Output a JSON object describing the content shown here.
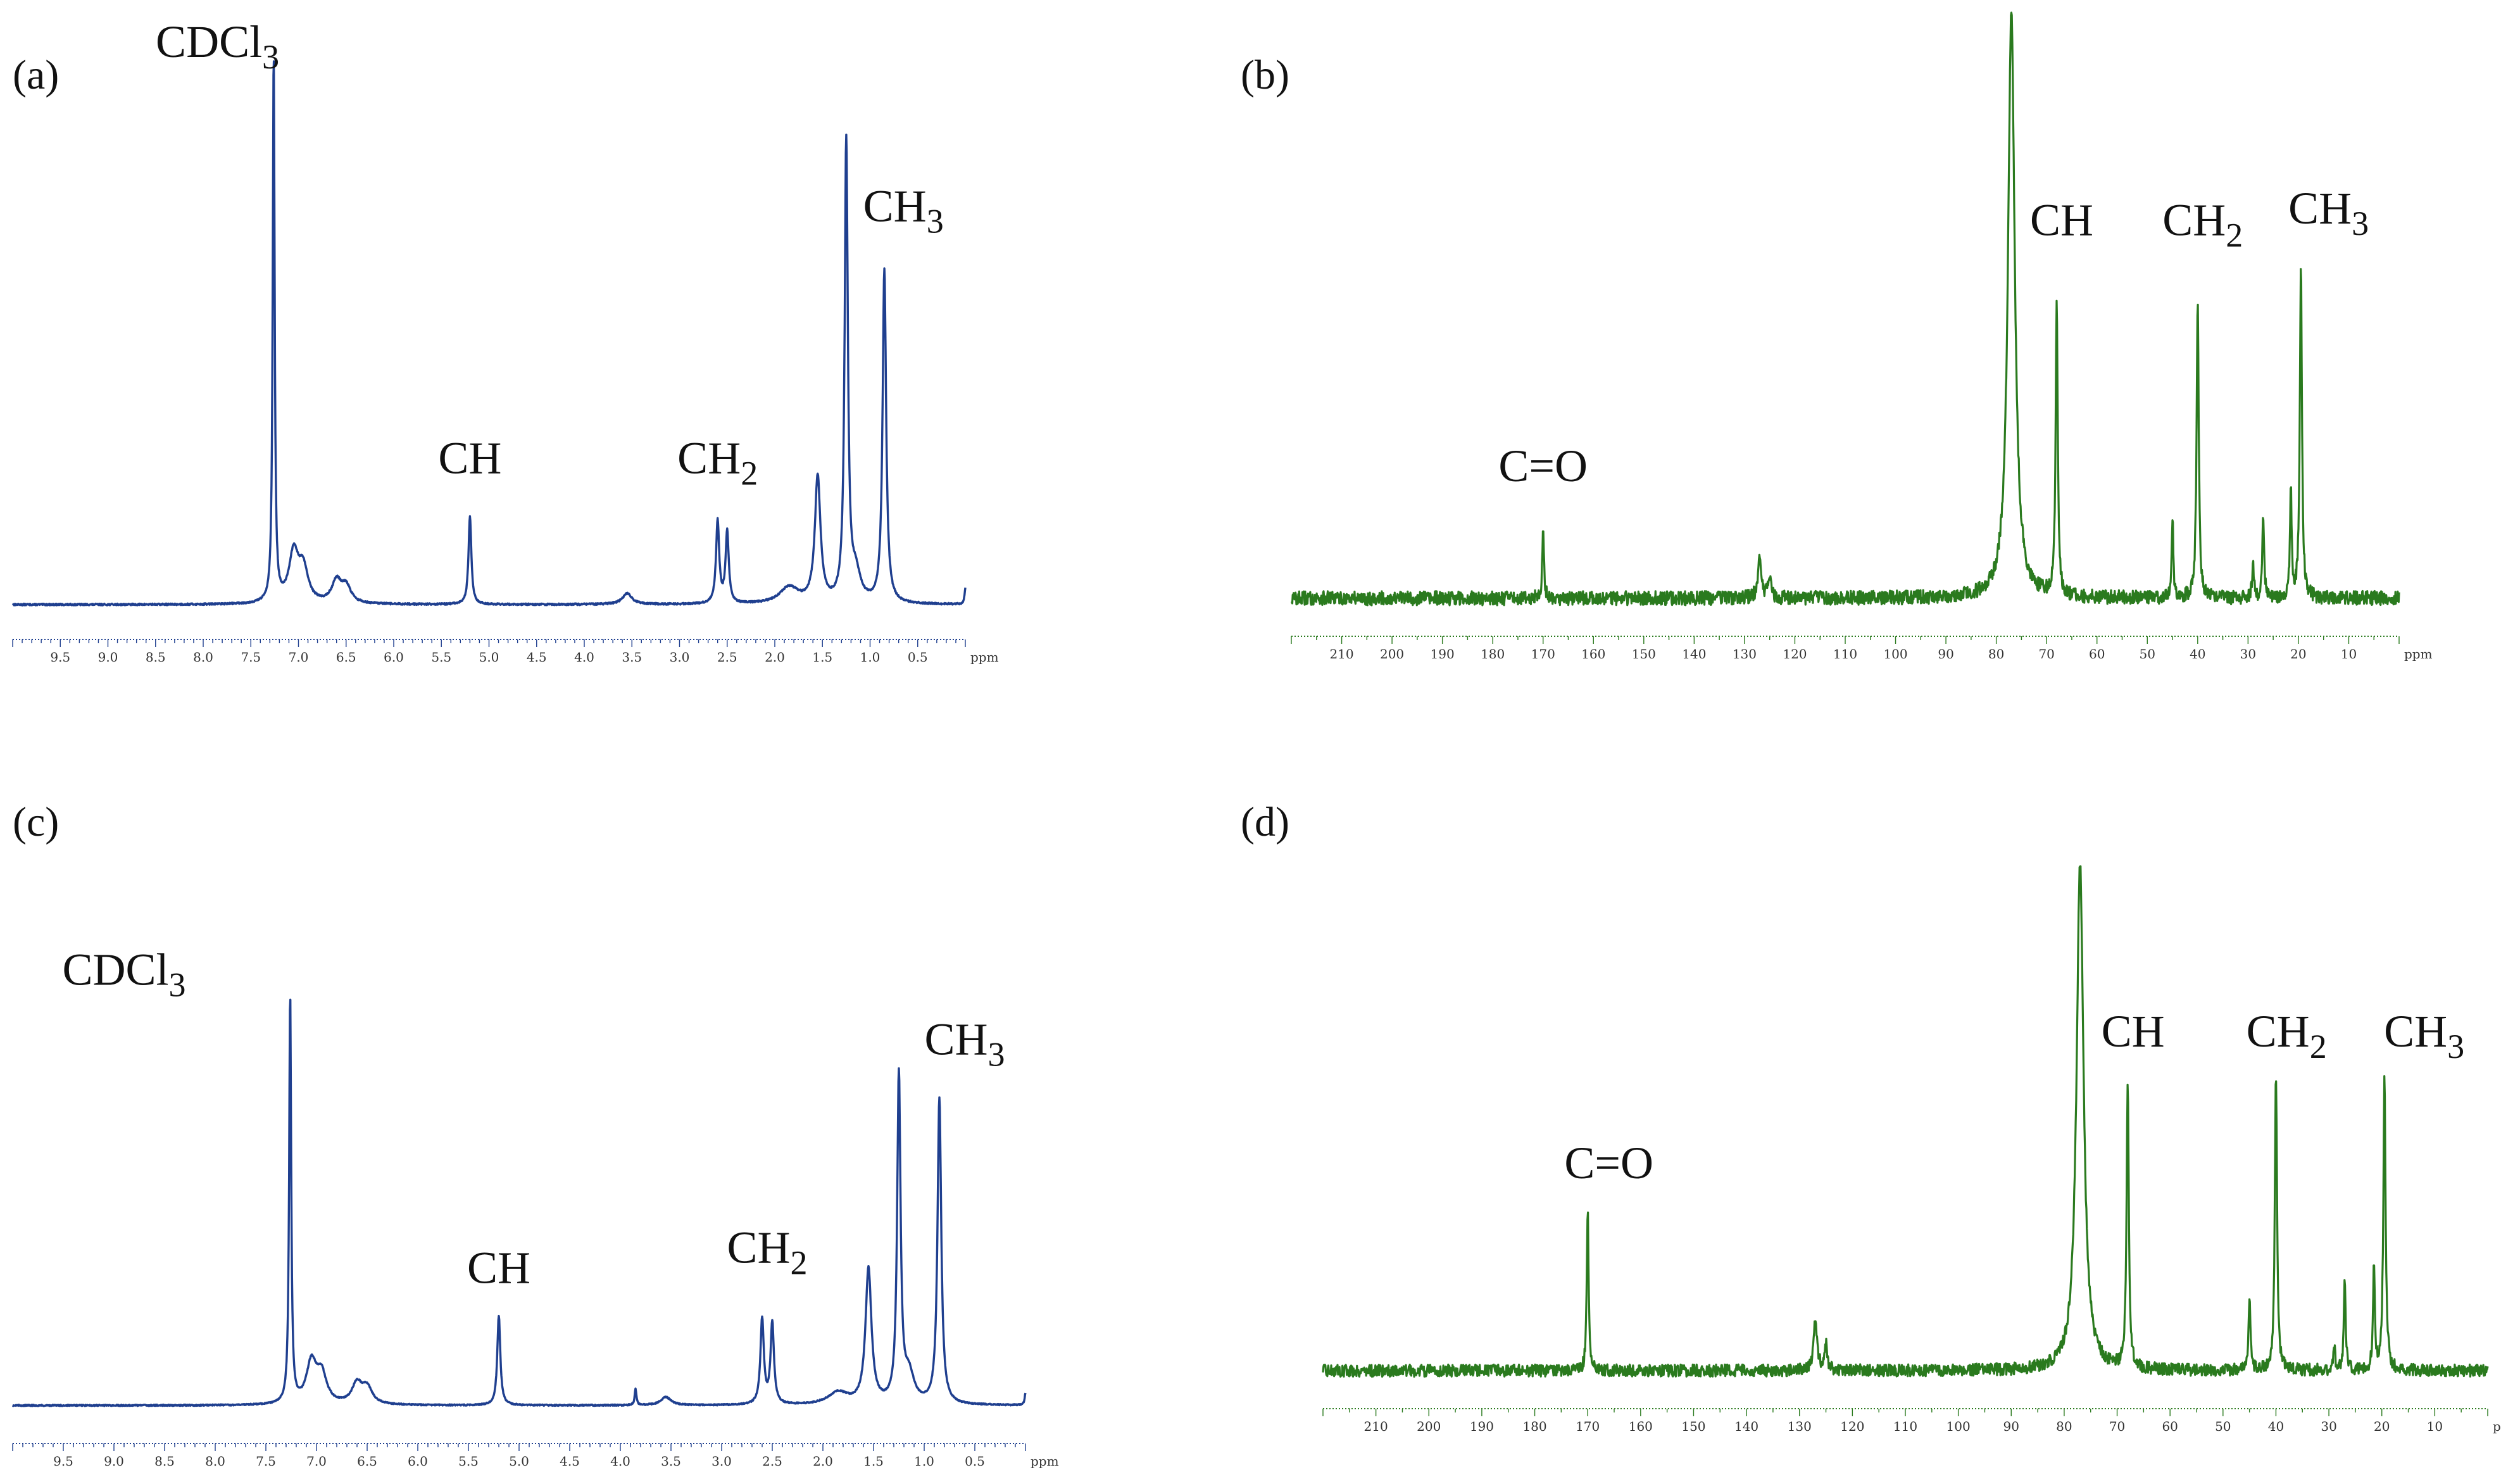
{
  "figure": {
    "colors": {
      "h1": "#1f3f8f",
      "c13": "#2a7a1e",
      "text": "#111111"
    }
  },
  "chart_data": [
    {
      "id": "a",
      "panel_label": "(a)",
      "type": "line",
      "nucleus": "1H",
      "color": "#1f3f8f",
      "x_range_ppm": [
        10.0,
        0.0
      ],
      "y_range": [
        0,
        1.0
      ],
      "axis_unit": "ppm",
      "ticks": [
        9.5,
        9.0,
        8.5,
        8.0,
        7.5,
        7.0,
        6.5,
        6.0,
        5.5,
        5.0,
        4.5,
        4.0,
        3.5,
        3.0,
        2.5,
        2.0,
        1.5,
        1.0,
        0.5
      ],
      "tick_labels": [
        "9.5",
        "9.0",
        "8.5",
        "8.0",
        "7.5",
        "7.0",
        "6.5",
        "6.0",
        "5.5",
        "5.0",
        "4.5",
        "4.0",
        "3.5",
        "3.0",
        "2.5",
        "2.0",
        "1.5",
        "1.0",
        "0.5"
      ],
      "peaks": [
        {
          "ppm": 7.26,
          "height": 1.0,
          "width": 0.012
        },
        {
          "ppm": 7.05,
          "height": 0.09,
          "width": 0.06
        },
        {
          "ppm": 6.95,
          "height": 0.06,
          "width": 0.06
        },
        {
          "ppm": 6.6,
          "height": 0.04,
          "width": 0.06
        },
        {
          "ppm": 6.5,
          "height": 0.03,
          "width": 0.06
        },
        {
          "ppm": 5.2,
          "height": 0.16,
          "width": 0.018
        },
        {
          "ppm": 3.55,
          "height": 0.02,
          "width": 0.06
        },
        {
          "ppm": 2.6,
          "height": 0.15,
          "width": 0.02
        },
        {
          "ppm": 2.5,
          "height": 0.13,
          "width": 0.02
        },
        {
          "ppm": 1.85,
          "height": 0.03,
          "width": 0.12
        },
        {
          "ppm": 1.55,
          "height": 0.23,
          "width": 0.035
        },
        {
          "ppm": 1.25,
          "height": 0.84,
          "width": 0.02
        },
        {
          "ppm": 1.15,
          "height": 0.05,
          "width": 0.06
        },
        {
          "ppm": 0.85,
          "height": 0.61,
          "width": 0.022
        },
        {
          "ppm": 0.0,
          "height": 0.03,
          "width": 0.01
        }
      ],
      "annotations": [
        {
          "label": "CDCl",
          "sub": "3",
          "ppm": 7.85,
          "y": 1.0
        },
        {
          "label": "CH",
          "sub": "3",
          "ppm": 0.65,
          "y": 0.7
        },
        {
          "label": "CH",
          "sub": "",
          "ppm": 5.2,
          "y": 0.24
        },
        {
          "label": "CH",
          "sub": "2",
          "ppm": 2.6,
          "y": 0.24
        }
      ]
    },
    {
      "id": "b",
      "panel_label": "(b)",
      "type": "line",
      "nucleus": "13C",
      "color": "#2a7a1e",
      "x_range_ppm": [
        220,
        0
      ],
      "y_range": [
        0,
        1.0
      ],
      "axis_unit": "ppm",
      "ticks": [
        210,
        200,
        190,
        180,
        170,
        160,
        150,
        140,
        130,
        120,
        110,
        100,
        90,
        80,
        70,
        60,
        50,
        40,
        30,
        20,
        10
      ],
      "tick_labels": [
        "210",
        "200",
        "190",
        "180",
        "170",
        "160",
        "150",
        "140",
        "130",
        "120",
        "110",
        "100",
        "90",
        "80",
        "70",
        "60",
        "50",
        "40",
        "30",
        "20",
        "10"
      ],
      "peaks": [
        {
          "ppm": 170,
          "height": 0.12,
          "width": 0.2
        },
        {
          "ppm": 127,
          "height": 0.07,
          "width": 0.4
        },
        {
          "ppm": 125,
          "height": 0.04,
          "width": 0.3
        },
        {
          "ppm": 77,
          "height": 1.0,
          "width": 0.8
        },
        {
          "ppm": 68,
          "height": 0.5,
          "width": 0.25
        },
        {
          "ppm": 45,
          "height": 0.14,
          "width": 0.2
        },
        {
          "ppm": 40,
          "height": 0.51,
          "width": 0.25
        },
        {
          "ppm": 29,
          "height": 0.06,
          "width": 0.2
        },
        {
          "ppm": 27,
          "height": 0.15,
          "width": 0.2
        },
        {
          "ppm": 21.5,
          "height": 0.19,
          "width": 0.2
        },
        {
          "ppm": 19.5,
          "height": 0.57,
          "width": 0.25
        }
      ],
      "annotations": [
        {
          "label": "C=O",
          "sub": "",
          "ppm": 170,
          "y": 0.2
        },
        {
          "label": "CH",
          "sub": "",
          "ppm": 67,
          "y": 0.62
        },
        {
          "label": "CH",
          "sub": "2",
          "ppm": 39,
          "y": 0.62
        },
        {
          "label": "CH",
          "sub": "3",
          "ppm": 14,
          "y": 0.64
        }
      ]
    },
    {
      "id": "c",
      "panel_label": "(c)",
      "type": "line",
      "nucleus": "1H",
      "color": "#1f3f8f",
      "x_range_ppm": [
        10.0,
        0.0
      ],
      "y_range": [
        0,
        1.0
      ],
      "axis_unit": "ppm",
      "ticks": [
        9.5,
        9.0,
        8.5,
        8.0,
        7.5,
        7.0,
        6.5,
        6.0,
        5.5,
        5.0,
        4.5,
        4.0,
        3.5,
        3.0,
        2.5,
        2.0,
        1.5,
        1.0,
        0.5
      ],
      "tick_labels": [
        "9.5",
        "9.0",
        "8.5",
        "8.0",
        "7.5",
        "7.0",
        "6.5",
        "6.0",
        "5.5",
        "5.0",
        "4.5",
        "4.0",
        "3.5",
        "3.0",
        "2.5",
        "2.0",
        "1.5",
        "1.0",
        "0.5"
      ],
      "peaks": [
        {
          "ppm": 7.26,
          "height": 1.0,
          "width": 0.012
        },
        {
          "ppm": 7.05,
          "height": 0.1,
          "width": 0.06
        },
        {
          "ppm": 6.95,
          "height": 0.07,
          "width": 0.06
        },
        {
          "ppm": 6.6,
          "height": 0.05,
          "width": 0.06
        },
        {
          "ppm": 6.5,
          "height": 0.04,
          "width": 0.06
        },
        {
          "ppm": 5.2,
          "height": 0.22,
          "width": 0.018
        },
        {
          "ppm": 3.85,
          "height": 0.04,
          "width": 0.01
        },
        {
          "ppm": 3.55,
          "height": 0.02,
          "width": 0.06
        },
        {
          "ppm": 2.6,
          "height": 0.21,
          "width": 0.02
        },
        {
          "ppm": 2.5,
          "height": 0.2,
          "width": 0.02
        },
        {
          "ppm": 1.85,
          "height": 0.03,
          "width": 0.12
        },
        {
          "ppm": 1.55,
          "height": 0.33,
          "width": 0.035
        },
        {
          "ppm": 1.25,
          "height": 0.8,
          "width": 0.02
        },
        {
          "ppm": 1.15,
          "height": 0.07,
          "width": 0.06
        },
        {
          "ppm": 0.85,
          "height": 0.75,
          "width": 0.022
        },
        {
          "ppm": 0.0,
          "height": 0.03,
          "width": 0.01
        }
      ],
      "annotations": [
        {
          "label": "CDCl",
          "sub": "3",
          "ppm": 8.9,
          "y": 1.03
        },
        {
          "label": "CH",
          "sub": "3",
          "ppm": 0.6,
          "y": 0.86
        },
        {
          "label": "CH",
          "sub": "",
          "ppm": 5.2,
          "y": 0.3
        },
        {
          "label": "CH",
          "sub": "2",
          "ppm": 2.55,
          "y": 0.35
        }
      ]
    },
    {
      "id": "d",
      "panel_label": "(d)",
      "type": "line",
      "nucleus": "13C",
      "color": "#2a7a1e",
      "x_range_ppm": [
        220,
        0
      ],
      "y_range": [
        0,
        1.0
      ],
      "axis_unit": "ppm",
      "ticks": [
        210,
        200,
        190,
        180,
        170,
        160,
        150,
        140,
        130,
        120,
        110,
        100,
        90,
        80,
        70,
        60,
        50,
        40,
        30,
        20,
        10
      ],
      "tick_labels": [
        "210",
        "200",
        "190",
        "180",
        "170",
        "160",
        "150",
        "140",
        "130",
        "120",
        "110",
        "100",
        "90",
        "80",
        "70",
        "60",
        "50",
        "40",
        "30",
        "20",
        "10"
      ],
      "peaks": [
        {
          "ppm": 170,
          "height": 0.32,
          "width": 0.2
        },
        {
          "ppm": 127,
          "height": 0.1,
          "width": 0.4
        },
        {
          "ppm": 125,
          "height": 0.05,
          "width": 0.3
        },
        {
          "ppm": 77,
          "height": 1.0,
          "width": 0.8
        },
        {
          "ppm": 68,
          "height": 0.57,
          "width": 0.25
        },
        {
          "ppm": 45,
          "height": 0.15,
          "width": 0.2
        },
        {
          "ppm": 40,
          "height": 0.59,
          "width": 0.25
        },
        {
          "ppm": 29,
          "height": 0.05,
          "width": 0.2
        },
        {
          "ppm": 27,
          "height": 0.18,
          "width": 0.2
        },
        {
          "ppm": 21.5,
          "height": 0.21,
          "width": 0.2
        },
        {
          "ppm": 19.5,
          "height": 0.58,
          "width": 0.25
        }
      ],
      "annotations": [
        {
          "label": "C=O",
          "sub": "",
          "ppm": 166,
          "y": 0.38
        },
        {
          "label": "CH",
          "sub": "",
          "ppm": 67,
          "y": 0.64
        },
        {
          "label": "CH",
          "sub": "2",
          "ppm": 38,
          "y": 0.64
        },
        {
          "label": "CH",
          "sub": "3",
          "ppm": 12,
          "y": 0.64
        }
      ]
    }
  ]
}
